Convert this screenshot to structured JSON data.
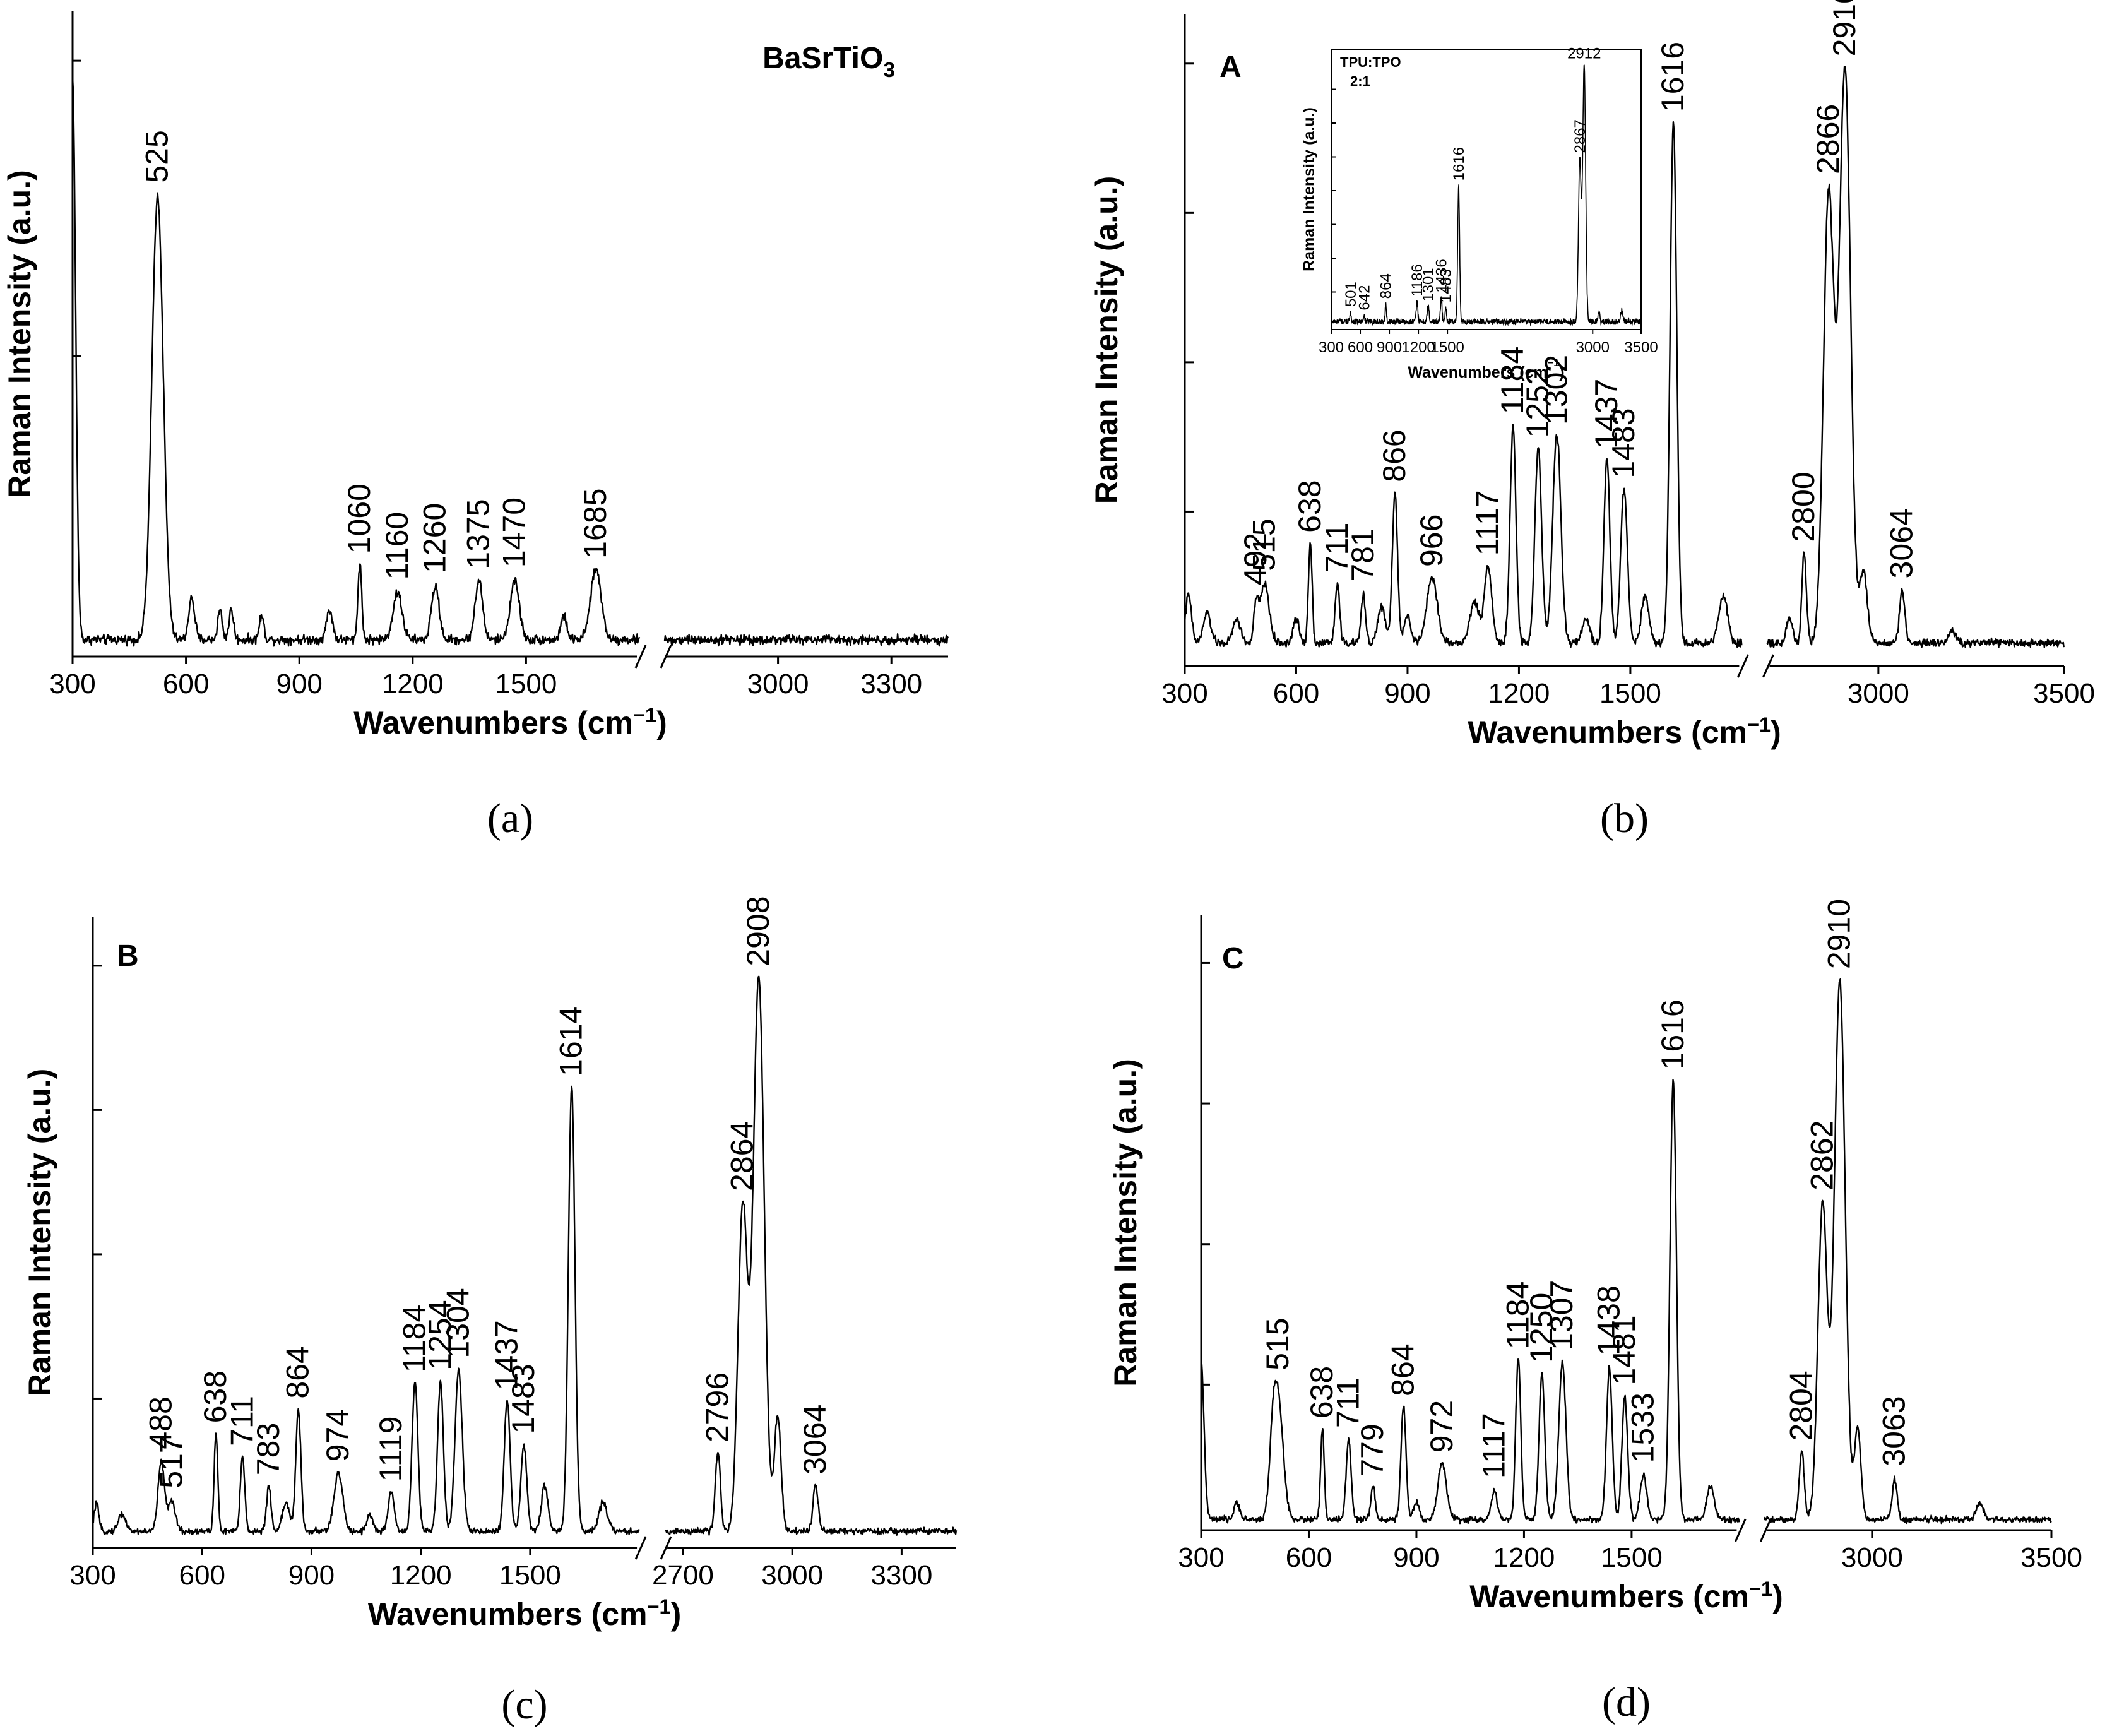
{
  "chart_data": [
    {
      "id": "a",
      "type": "line",
      "caption": "(a)",
      "panel_label": "BaSrTiO₃",
      "xlabel": "Wavenumbers (cm⁻¹)",
      "ylabel": "Raman Intensity (a.u.)",
      "xlim": [
        300,
        3450
      ],
      "axis_break": [
        1800,
        2700
      ],
      "ylim": [
        0,
        100
      ],
      "x_ticks": [
        300,
        600,
        900,
        1200,
        1500,
        3000,
        3300
      ],
      "tick_labels": [
        "300",
        "600",
        "900",
        "1200",
        "1500",
        "3000",
        "3300"
      ],
      "y_minor_ticks": [
        50,
        100
      ],
      "baseline": 2,
      "noise": 1.2,
      "edge_peak": {
        "height": 95,
        "width": 8
      },
      "peaks": [
        {
          "x": 525,
          "y": 75,
          "w": 15,
          "label": "525"
        },
        {
          "x": 615,
          "y": 7,
          "w": 8
        },
        {
          "x": 690,
          "y": 5,
          "w": 6
        },
        {
          "x": 720,
          "y": 5,
          "w": 6
        },
        {
          "x": 800,
          "y": 4,
          "w": 6
        },
        {
          "x": 980,
          "y": 5,
          "w": 8
        },
        {
          "x": 1060,
          "y": 13,
          "w": 5,
          "label": "1060"
        },
        {
          "x": 1160,
          "y": 8,
          "w": 12,
          "label": "1160"
        },
        {
          "x": 1260,
          "y": 9,
          "w": 10,
          "label": "1260"
        },
        {
          "x": 1375,
          "y": 10,
          "w": 10,
          "label": "1375"
        },
        {
          "x": 1470,
          "y": 10,
          "w": 12,
          "label": "1470"
        },
        {
          "x": 1600,
          "y": 4,
          "w": 8
        },
        {
          "x": 1685,
          "y": 12,
          "w": 14,
          "label": "1685"
        }
      ]
    },
    {
      "id": "b",
      "type": "line",
      "caption": "(b)",
      "panel_label": "A",
      "xlabel": "Wavenumbers (cm⁻¹)",
      "ylabel": "Raman Intensity (a.u.)",
      "xlim": [
        300,
        3500
      ],
      "axis_break": [
        1800,
        2700
      ],
      "ylim": [
        0,
        100
      ],
      "x_ticks": [
        300,
        600,
        900,
        1200,
        1500,
        3000,
        3500
      ],
      "tick_labels": [
        "300",
        "600",
        "900",
        "1200",
        "1500",
        "3000",
        "3500"
      ],
      "y_minor_ticks": [
        25,
        50,
        75,
        100
      ],
      "baseline": 3,
      "noise": 1.0,
      "peaks": [
        {
          "x": 310,
          "y": 8,
          "w": 8
        },
        {
          "x": 360,
          "y": 5,
          "w": 10
        },
        {
          "x": 440,
          "y": 4,
          "w": 10
        },
        {
          "x": 492,
          "y": 6,
          "w": 6,
          "label": "492"
        },
        {
          "x": 515,
          "y": 10,
          "w": 12,
          "label": "515"
        },
        {
          "x": 600,
          "y": 4,
          "w": 8
        },
        {
          "x": 638,
          "y": 17,
          "w": 5,
          "label": "638"
        },
        {
          "x": 711,
          "y": 10,
          "w": 6,
          "label": "711"
        },
        {
          "x": 781,
          "y": 8,
          "w": 6,
          "label": "781"
        },
        {
          "x": 830,
          "y": 6,
          "w": 10
        },
        {
          "x": 866,
          "y": 25,
          "w": 7,
          "label": "866"
        },
        {
          "x": 900,
          "y": 5,
          "w": 8
        },
        {
          "x": 966,
          "y": 11,
          "w": 14,
          "label": "966"
        },
        {
          "x": 1080,
          "y": 7,
          "w": 12
        },
        {
          "x": 1117,
          "y": 13,
          "w": 10,
          "label": "1117"
        },
        {
          "x": 1184,
          "y": 36,
          "w": 8,
          "label": "1184"
        },
        {
          "x": 1252,
          "y": 33,
          "w": 9,
          "label": "1252"
        },
        {
          "x": 1302,
          "y": 35,
          "w": 11,
          "label": "1302"
        },
        {
          "x": 1380,
          "y": 4,
          "w": 10
        },
        {
          "x": 1437,
          "y": 31,
          "w": 8,
          "label": "1437"
        },
        {
          "x": 1483,
          "y": 26,
          "w": 9,
          "label": "1483"
        },
        {
          "x": 1540,
          "y": 8,
          "w": 10
        },
        {
          "x": 1616,
          "y": 87,
          "w": 9,
          "label": "1616"
        },
        {
          "x": 1750,
          "y": 8,
          "w": 12
        },
        {
          "x": 2760,
          "y": 4,
          "w": 8
        },
        {
          "x": 2800,
          "y": 15,
          "w": 6,
          "label": "2800"
        },
        {
          "x": 2866,
          "y": 75,
          "w": 14,
          "label": "2866"
        },
        {
          "x": 2910,
          "y": 96,
          "w": 15,
          "label": "2910"
        },
        {
          "x": 2960,
          "y": 12,
          "w": 10
        },
        {
          "x": 3064,
          "y": 9,
          "w": 7,
          "label": "3064"
        },
        {
          "x": 3200,
          "y": 2,
          "w": 10
        }
      ],
      "inset": {
        "panel_label": "TPU:TPO",
        "panel_label_2": "2:1",
        "xlabel": "Wavenumbers (cm⁻¹)",
        "ylabel": "Raman Intensity (a.u.)",
        "xlim": [
          300,
          3500
        ],
        "x_ticks": [
          300,
          600,
          900,
          1200,
          1500,
          3000,
          3500
        ],
        "tick_labels": [
          "300",
          "600",
          "900",
          "1200",
          "1500",
          "3000",
          "3500"
        ],
        "y_minor_ticks": [
          12.5,
          25,
          37.5,
          50,
          62.5,
          75,
          87.5
        ],
        "peaks": [
          {
            "x": 501,
            "y": 3,
            "w": 8,
            "label": "501"
          },
          {
            "x": 642,
            "y": 2,
            "w": 6,
            "label": "642"
          },
          {
            "x": 864,
            "y": 6,
            "w": 7,
            "label": "864"
          },
          {
            "x": 1186,
            "y": 8,
            "w": 8,
            "label": "1186"
          },
          {
            "x": 1301,
            "y": 6,
            "w": 9,
            "label": "1301"
          },
          {
            "x": 1436,
            "y": 9,
            "w": 8,
            "label": "1436"
          },
          {
            "x": 1483,
            "y": 5,
            "w": 8,
            "label": "1483"
          },
          {
            "x": 1616,
            "y": 50,
            "w": 10,
            "label": "1616"
          },
          {
            "x": 2867,
            "y": 60,
            "w": 14,
            "label": "2867"
          },
          {
            "x": 2912,
            "y": 95,
            "w": 15,
            "label": "2912"
          },
          {
            "x": 3064,
            "y": 4,
            "w": 8
          },
          {
            "x": 3300,
            "y": 4,
            "w": 12
          }
        ]
      }
    },
    {
      "id": "c",
      "type": "line",
      "caption": "(c)",
      "panel_label": "B",
      "xlabel": "Wavenumbers (cm⁻¹)",
      "ylabel": "Raman Intensity (a.u.)",
      "xlim": [
        300,
        3450
      ],
      "axis_break": [
        1800,
        2650
      ],
      "ylim": [
        0,
        100
      ],
      "x_ticks": [
        300,
        600,
        900,
        1200,
        1500,
        2700,
        3000,
        3300
      ],
      "tick_labels": [
        "300",
        "600",
        "900",
        "1200",
        "1500",
        "2700",
        "3000",
        "3300"
      ],
      "y_minor_ticks": [
        25,
        50,
        75,
        100
      ],
      "baseline": 2,
      "noise": 0.8,
      "peaks": [
        {
          "x": 310,
          "y": 5,
          "w": 6
        },
        {
          "x": 380,
          "y": 3,
          "w": 10
        },
        {
          "x": 488,
          "y": 12,
          "w": 9,
          "label": "488"
        },
        {
          "x": 517,
          "y": 5,
          "w": 10,
          "label": "517"
        },
        {
          "x": 638,
          "y": 17,
          "w": 5,
          "label": "638"
        },
        {
          "x": 711,
          "y": 13,
          "w": 6,
          "label": "711"
        },
        {
          "x": 783,
          "y": 8,
          "w": 6,
          "label": "783"
        },
        {
          "x": 830,
          "y": 5,
          "w": 10
        },
        {
          "x": 864,
          "y": 21,
          "w": 7,
          "label": "864"
        },
        {
          "x": 974,
          "y": 10,
          "w": 12,
          "label": "974"
        },
        {
          "x": 1060,
          "y": 3,
          "w": 8
        },
        {
          "x": 1119,
          "y": 7,
          "w": 8,
          "label": "1119"
        },
        {
          "x": 1184,
          "y": 26,
          "w": 8,
          "label": "1184"
        },
        {
          "x": 1254,
          "y": 26,
          "w": 8,
          "label": "1254"
        },
        {
          "x": 1304,
          "y": 28,
          "w": 10,
          "label": "1304"
        },
        {
          "x": 1437,
          "y": 23,
          "w": 8,
          "label": "1437"
        },
        {
          "x": 1483,
          "y": 15,
          "w": 8,
          "label": "1483"
        },
        {
          "x": 1540,
          "y": 8,
          "w": 9
        },
        {
          "x": 1614,
          "y": 77,
          "w": 9,
          "label": "1614"
        },
        {
          "x": 1700,
          "y": 5,
          "w": 12
        },
        {
          "x": 2796,
          "y": 14,
          "w": 7,
          "label": "2796"
        },
        {
          "x": 2864,
          "y": 56,
          "w": 13,
          "label": "2864"
        },
        {
          "x": 2908,
          "y": 96,
          "w": 15,
          "label": "2908"
        },
        {
          "x": 2960,
          "y": 20,
          "w": 9
        },
        {
          "x": 3064,
          "y": 8,
          "w": 7,
          "label": "3064"
        }
      ]
    },
    {
      "id": "d",
      "type": "line",
      "caption": "(d)",
      "panel_label": "C",
      "xlabel": "Wavenumbers (cm⁻¹)",
      "ylabel": "Raman Intensity (a.u.)",
      "xlim": [
        300,
        3500
      ],
      "axis_break": [
        1800,
        2700
      ],
      "ylim": [
        0,
        100
      ],
      "x_ticks": [
        300,
        600,
        900,
        1200,
        1500,
        3000,
        3500
      ],
      "tick_labels": [
        "300",
        "600",
        "900",
        "1200",
        "1500",
        "3000",
        "3500"
      ],
      "y_minor_ticks": [
        25,
        50,
        75,
        100
      ],
      "baseline": 1,
      "noise": 0.8,
      "edge_peak": {
        "height": 28,
        "width": 8
      },
      "peaks": [
        {
          "x": 400,
          "y": 3,
          "w": 8
        },
        {
          "x": 500,
          "y": 10,
          "w": 10
        },
        {
          "x": 515,
          "y": 20,
          "w": 14,
          "label": "515"
        },
        {
          "x": 638,
          "y": 16,
          "w": 5,
          "label": "638"
        },
        {
          "x": 711,
          "y": 14,
          "w": 7,
          "label": "711"
        },
        {
          "x": 779,
          "y": 6,
          "w": 6,
          "label": "779"
        },
        {
          "x": 864,
          "y": 20,
          "w": 7,
          "label": "864"
        },
        {
          "x": 900,
          "y": 3,
          "w": 8
        },
        {
          "x": 972,
          "y": 10,
          "w": 12,
          "label": "972"
        },
        {
          "x": 1117,
          "y": 5,
          "w": 8,
          "label": "1117"
        },
        {
          "x": 1184,
          "y": 29,
          "w": 7,
          "label": "1184"
        },
        {
          "x": 1250,
          "y": 26,
          "w": 8,
          "label": "1250"
        },
        {
          "x": 1307,
          "y": 28,
          "w": 10,
          "label": "1307"
        },
        {
          "x": 1438,
          "y": 27,
          "w": 8,
          "label": "1438"
        },
        {
          "x": 1481,
          "y": 22,
          "w": 8,
          "label": "1481"
        },
        {
          "x": 1533,
          "y": 8,
          "w": 9,
          "label": "1533"
        },
        {
          "x": 1616,
          "y": 78,
          "w": 9,
          "label": "1616"
        },
        {
          "x": 1720,
          "y": 6,
          "w": 10
        },
        {
          "x": 2804,
          "y": 12,
          "w": 7,
          "label": "2804"
        },
        {
          "x": 2862,
          "y": 56,
          "w": 13,
          "label": "2862"
        },
        {
          "x": 2910,
          "y": 96,
          "w": 15,
          "label": "2910"
        },
        {
          "x": 2960,
          "y": 16,
          "w": 9
        },
        {
          "x": 3063,
          "y": 7,
          "w": 7,
          "label": "3063"
        },
        {
          "x": 3300,
          "y": 3,
          "w": 10
        }
      ]
    }
  ]
}
